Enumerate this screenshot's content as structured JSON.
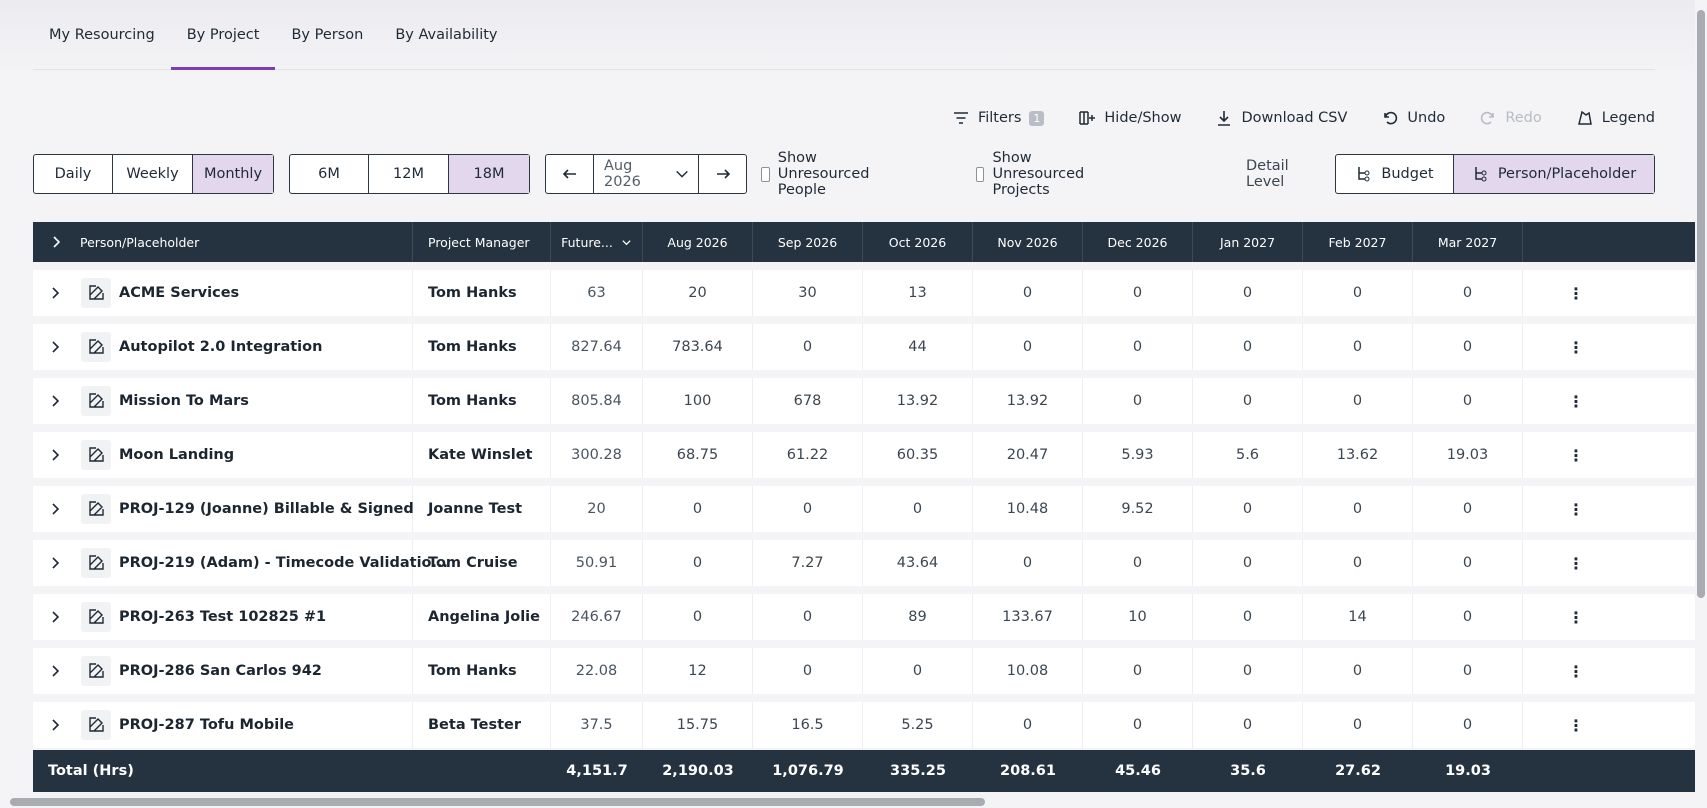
{
  "tabs": [
    "My Resourcing",
    "By Project",
    "By Person",
    "By Availability"
  ],
  "actions": {
    "filters": "Filters",
    "filters_count": "1",
    "hide_show": "Hide/Show",
    "download": "Download CSV",
    "undo": "Undo",
    "redo": "Redo",
    "legend": "Legend"
  },
  "period": [
    "Daily",
    "Weekly",
    "Monthly"
  ],
  "range": [
    "6M",
    "12M",
    "18M"
  ],
  "date": "Aug 2026",
  "checkboxes": {
    "unres_people": "Show Unresourced People",
    "unres_projects": "Show Unresourced Projects"
  },
  "detail": {
    "label": "Detail Level",
    "budget": "Budget",
    "person": "Person/Placeholder"
  },
  "columns": {
    "name": "Person/Placeholder",
    "pm": "Project Manager",
    "future": "Future...",
    "months": [
      "Aug 2026",
      "Sep 2026",
      "Oct 2026",
      "Nov 2026",
      "Dec 2026",
      "Jan 2027",
      "Feb 2027",
      "Mar 2027"
    ]
  },
  "rows": [
    {
      "name": "ACME Services",
      "pm": "Tom Hanks",
      "future": "63",
      "m": [
        "20",
        "30",
        "13",
        "0",
        "0",
        "0",
        "0",
        "0"
      ]
    },
    {
      "name": "Autopilot 2.0 Integration",
      "pm": "Tom Hanks",
      "future": "827.64",
      "m": [
        "783.64",
        "0",
        "44",
        "0",
        "0",
        "0",
        "0",
        "0"
      ]
    },
    {
      "name": "Mission To Mars",
      "pm": "Tom Hanks",
      "future": "805.84",
      "m": [
        "100",
        "678",
        "13.92",
        "13.92",
        "0",
        "0",
        "0",
        "0"
      ]
    },
    {
      "name": "Moon Landing",
      "pm": "Kate Winslet",
      "future": "300.28",
      "m": [
        "68.75",
        "61.22",
        "60.35",
        "20.47",
        "5.93",
        "5.6",
        "13.62",
        "19.03"
      ]
    },
    {
      "name": "PROJ-129  (Joanne) Billable & Signed",
      "pm": "Joanne Test",
      "future": "20",
      "m": [
        "0",
        "0",
        "0",
        "10.48",
        "9.52",
        "0",
        "0",
        "0"
      ]
    },
    {
      "name": "PROJ-219  (Adam) - Timecode Validatio...",
      "pm": "Tom Cruise",
      "future": "50.91",
      "m": [
        "0",
        "7.27",
        "43.64",
        "0",
        "0",
        "0",
        "0",
        "0"
      ]
    },
    {
      "name": "PROJ-263  Test 102825 #1",
      "pm": "Angelina Jolie",
      "future": "246.67",
      "m": [
        "0",
        "0",
        "89",
        "133.67",
        "10",
        "0",
        "14",
        "0"
      ]
    },
    {
      "name": "PROJ-286  San Carlos 942",
      "pm": "Tom Hanks",
      "future": "22.08",
      "m": [
        "12",
        "0",
        "0",
        "10.08",
        "0",
        "0",
        "0",
        "0"
      ]
    },
    {
      "name": "PROJ-287  Tofu Mobile",
      "pm": "Beta Tester",
      "future": "37.5",
      "m": [
        "15.75",
        "16.5",
        "5.25",
        "0",
        "0",
        "0",
        "0",
        "0"
      ]
    }
  ],
  "total": {
    "label": "Total (Hrs)",
    "future": "4,151.7",
    "m": [
      "2,190.03",
      "1,076.79",
      "335.25",
      "208.61",
      "45.46",
      "35.6",
      "27.62",
      "19.03"
    ]
  }
}
